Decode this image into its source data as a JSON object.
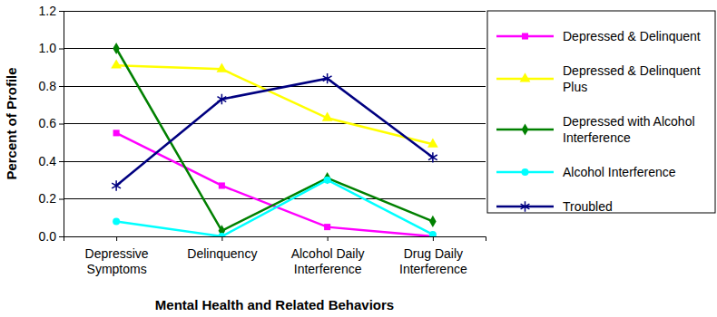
{
  "chart_data": {
    "type": "line",
    "x_label": "Mental Health and Related Behaviors",
    "y_label": "Percent of Profile",
    "categories": [
      "Depressive Symptoms",
      "Delinquency",
      "Alcohol Daily Interference",
      "Drug Daily Interference"
    ],
    "series": [
      {
        "name": "Depressed & Delinquent",
        "color": "#ff00ff",
        "marker": "square",
        "values": [
          0.55,
          0.27,
          0.05,
          0.0
        ]
      },
      {
        "name": "Depressed & Delinquent Plus",
        "color": "#ffff00",
        "marker": "triangle",
        "values": [
          0.91,
          0.89,
          0.63,
          0.49
        ]
      },
      {
        "name": "Depressed with Alcohol Interference",
        "color": "#008000",
        "marker": "diamond",
        "values": [
          1.0,
          0.03,
          0.31,
          0.08
        ]
      },
      {
        "name": "Alcohol Interference",
        "color": "#00ffff",
        "marker": "circle",
        "values": [
          0.08,
          0.0,
          0.3,
          0.01
        ]
      },
      {
        "name": "Troubled",
        "color": "#000080",
        "marker": "asterisk",
        "values": [
          0.27,
          0.73,
          0.84,
          0.42
        ]
      }
    ],
    "ylim": [
      0,
      1.2
    ],
    "yticks": [
      {
        "value": 0,
        "label": "0.0"
      },
      0.2,
      0.4,
      0.6,
      0.8,
      {
        "value": 1,
        "label": "1.0"
      },
      1.2
    ],
    "grid": true,
    "legend": "right"
  }
}
